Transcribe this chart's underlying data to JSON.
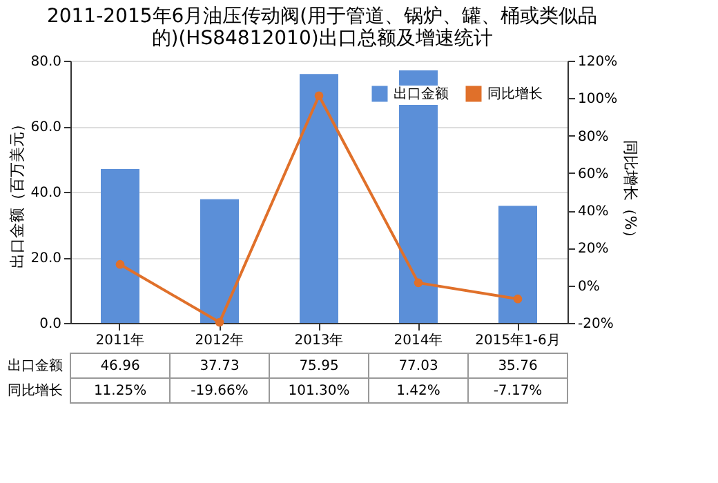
{
  "chart_data": {
    "type": "bar",
    "title": "2011-2015年6月油压传动阀(用于管道、锅炉、罐、桶或类似品的)(HS84812010)出口总额及增速统计",
    "categories": [
      "2011年",
      "2012年",
      "2013年",
      "2014年",
      "2015年1-6月"
    ],
    "series": [
      {
        "name": "出口金额",
        "color": "#5b8fd8",
        "values": [
          46.96,
          37.73,
          75.95,
          77.03,
          35.76
        ],
        "value_labels": [
          "46.96",
          "37.73",
          "75.95",
          "77.03",
          "35.76"
        ]
      },
      {
        "name": "同比增长",
        "type": "line",
        "axis": "y2",
        "color": "#e0702a",
        "values": [
          11.25,
          -19.66,
          101.3,
          1.42,
          -7.17
        ],
        "value_labels": [
          "11.25%",
          "-19.66%",
          "101.30%",
          "1.42%",
          "-7.17%"
        ]
      }
    ],
    "ylabel": "出口金额（百万美元）",
    "y2label": "同比增长（%）",
    "ylim": [
      0,
      80
    ],
    "yticks": [
      {
        "value": 0,
        "label": "0.0"
      },
      {
        "value": 20,
        "label": "20.0"
      },
      {
        "value": 40,
        "label": "40.0"
      },
      {
        "value": 60,
        "label": "60.0"
      },
      {
        "value": 80,
        "label": "80.0"
      }
    ],
    "y2lim": [
      -20,
      120
    ],
    "y2ticks": [
      {
        "value": -20,
        "label": "-20%"
      },
      {
        "value": 0,
        "label": "0%"
      },
      {
        "value": 20,
        "label": "20%"
      },
      {
        "value": 40,
        "label": "40%"
      },
      {
        "value": 60,
        "label": "60%"
      },
      {
        "value": 80,
        "label": "80%"
      },
      {
        "value": 100,
        "label": "100%"
      },
      {
        "value": 120,
        "label": "120%"
      }
    ],
    "grid": "y",
    "legend": "top right",
    "marker": "circle",
    "line_style": "solid"
  }
}
